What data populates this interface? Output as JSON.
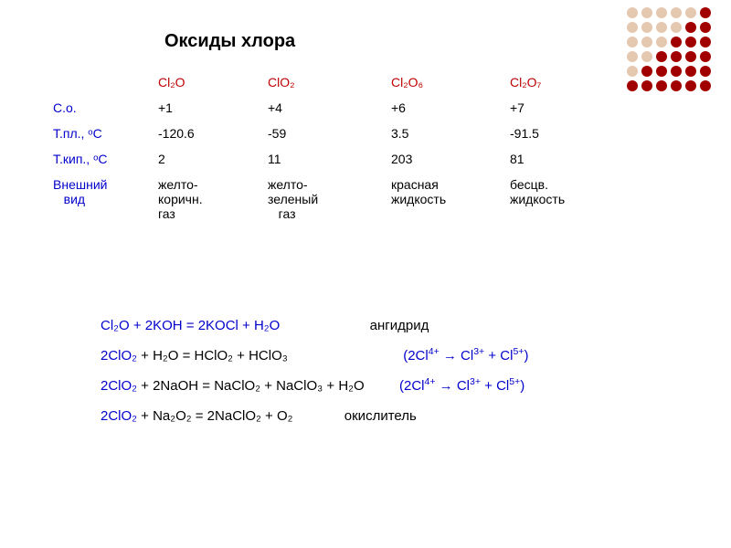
{
  "title": {
    "text": "Оксиды хлора",
    "fontsize": 20,
    "color": "#000000"
  },
  "dot_grid": {
    "rows": 6,
    "cols": 6,
    "colors": [
      [
        "#e4c8b0",
        "#e4c8b0",
        "#e4c8b0",
        "#e4c8b0",
        "#e4c8b0",
        "#a00000"
      ],
      [
        "#e4c8b0",
        "#e4c8b0",
        "#e4c8b0",
        "#e4c8b0",
        "#a00000",
        "#a00000"
      ],
      [
        "#e4c8b0",
        "#e4c8b0",
        "#e4c8b0",
        "#a00000",
        "#a00000",
        "#a00000"
      ],
      [
        "#e4c8b0",
        "#e4c8b0",
        "#a00000",
        "#a00000",
        "#a00000",
        "#a00000"
      ],
      [
        "#e4c8b0",
        "#a00000",
        "#a00000",
        "#a00000",
        "#a00000",
        "#a00000"
      ],
      [
        "#a00000",
        "#a00000",
        "#a00000",
        "#a00000",
        "#a00000",
        "#a00000"
      ]
    ]
  },
  "table": {
    "header_color": "#c00000",
    "label_color": "#0000cc",
    "cell_color": "#000000",
    "headers": [
      "Cl₂O",
      "ClO₂",
      "Cl₂O₆",
      "Cl₂O₇"
    ],
    "rows": [
      {
        "label": "С.о.",
        "cells": [
          "+1",
          "+4",
          "+6",
          "+7"
        ]
      },
      {
        "label": "Т.пл., ᵒС",
        "cells": [
          "-120.6",
          "-59",
          "3.5",
          "-91.5"
        ]
      },
      {
        "label": "Т.кип., ᵒС",
        "cells": [
          "2",
          "11",
          "203",
          "81"
        ]
      },
      {
        "label": "Внешний\n   вид",
        "cells": [
          "желто-\nкоричн.\nгаз",
          "желто-\nзеленый\n   газ",
          "красная\nжидкость",
          "бесцв.\nжидкость"
        ]
      }
    ]
  },
  "reactions": {
    "blue": "#0000cc",
    "black": "#000000",
    "r1": {
      "eq": "Cl₂O + 2KOH = 2KOCl + H₂O",
      "note": "ангидрид"
    },
    "r2": {
      "lhs": "2ClO₂",
      "rhs": " + H₂O = HClO₂ + HClO₃",
      "note_l": "(2Cl",
      "s1": "4+",
      "arr": " → Cl",
      "s2": "3+",
      "plus": " + Cl",
      "s3": "5+",
      "note_r": ")"
    },
    "r3": {
      "lhs": "2ClO₂",
      "rhs": " + 2NaOH = NaClO₂ + NaClO₃ + H₂O",
      "note_l": "(2Cl",
      "s1": "4+",
      "arr": " → Cl",
      "s2": "3+",
      "plus": " + Cl",
      "s3": "5+",
      "note_r": ")"
    },
    "r4": {
      "lhs": "2ClO₂",
      "rhs": " + Na₂O₂ = 2NaClO₂ + O₂",
      "note": "окислитель"
    }
  }
}
